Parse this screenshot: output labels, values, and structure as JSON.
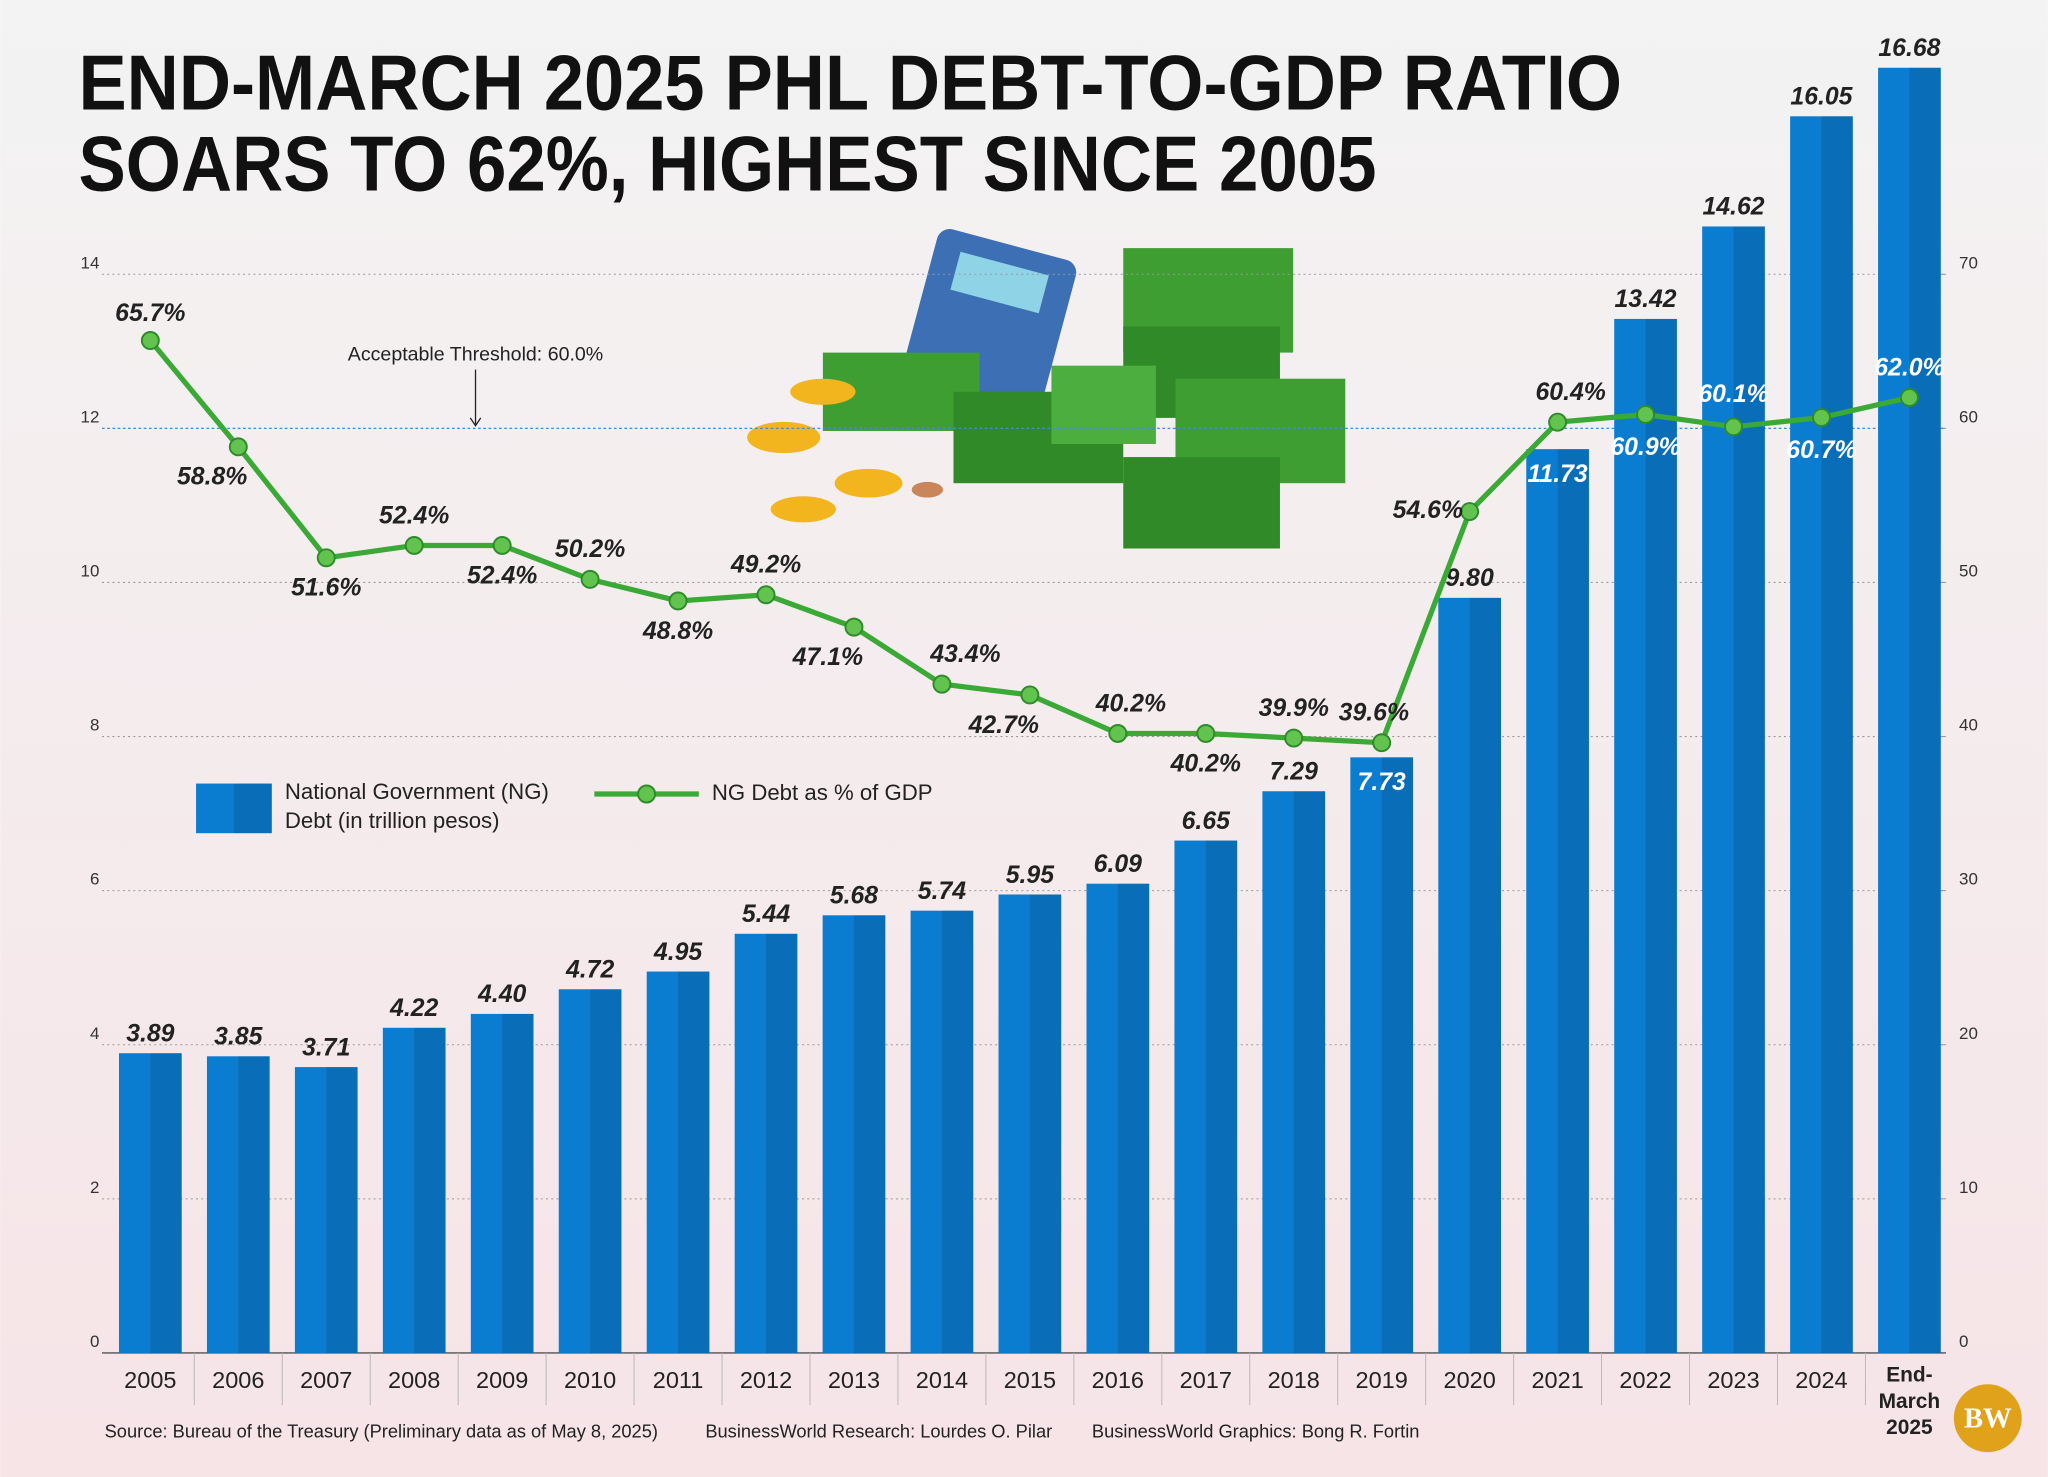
{
  "chart_data": {
    "type": "bar-line",
    "title": [
      "END-MARCH 2025 PHL DEBT-TO-GDP RATIO",
      "SOARS TO 62%, HIGHEST SINCE 2005"
    ],
    "categories": [
      "2005",
      "2006",
      "2007",
      "2008",
      "2009",
      "2010",
      "2011",
      "2012",
      "2013",
      "2014",
      "2015",
      "2016",
      "2017",
      "2018",
      "2019",
      "2020",
      "2021",
      "2022",
      "2023",
      "2024",
      "End-March 2025"
    ],
    "series": [
      {
        "name": "National Government (NG) Debt (in trillion pesos)",
        "type": "bar",
        "color": "#0b7dd1",
        "axis": "y",
        "values": [
          3.89,
          3.85,
          3.71,
          4.22,
          4.4,
          4.72,
          4.95,
          5.44,
          5.68,
          5.74,
          5.95,
          6.09,
          6.65,
          7.29,
          7.73,
          9.8,
          11.73,
          13.42,
          14.62,
          16.05,
          16.68
        ],
        "value_labels": [
          "3.89",
          "3.85",
          "3.71",
          "4.22",
          "4.40",
          "4.72",
          "4.95",
          "5.44",
          "5.68",
          "5.74",
          "5.95",
          "6.09",
          "6.65",
          "7.29",
          "7.73",
          "9.80",
          "11.73",
          "13.42",
          "14.62",
          "16.05",
          "16.68"
        ]
      },
      {
        "name": "NG Debt as % of GDP",
        "type": "line",
        "color": "#3aa935",
        "axis": "y2",
        "values": [
          65.7,
          58.8,
          51.6,
          52.4,
          52.4,
          50.2,
          48.8,
          49.2,
          47.1,
          43.4,
          42.7,
          40.2,
          40.2,
          39.9,
          39.6,
          54.6,
          60.4,
          60.9,
          60.1,
          60.7,
          62.0
        ],
        "value_labels": [
          "65.7%",
          "58.8%",
          "51.6%",
          "52.4%",
          "52.4%",
          "50.2%",
          "48.8%",
          "49.2%",
          "47.1%",
          "43.4%",
          "42.7%",
          "40.2%",
          "40.2%",
          "39.9%",
          "39.6%",
          "54.6%",
          "60.4%",
          "60.9%",
          "60.1%",
          "60.7%",
          "62.0%"
        ]
      }
    ],
    "ylim": [
      0,
      14
    ],
    "yticks": [
      0,
      2,
      4,
      6,
      8,
      10,
      12,
      14
    ],
    "y2lim": [
      0,
      70
    ],
    "y2ticks": [
      0,
      10,
      20,
      30,
      40,
      50,
      60,
      70
    ],
    "grid": true,
    "threshold": {
      "value": 60,
      "axis": "y2",
      "label": "Acceptable Threshold: 60.0%"
    },
    "credits": [
      "Source: Bureau of the Treasury (Preliminary data as of May 8, 2025)",
      "BusinessWorld Research: Lourdes O. Pilar",
      "BusinessWorld Graphics: Bong R. Fortin"
    ],
    "logo": "BW"
  }
}
